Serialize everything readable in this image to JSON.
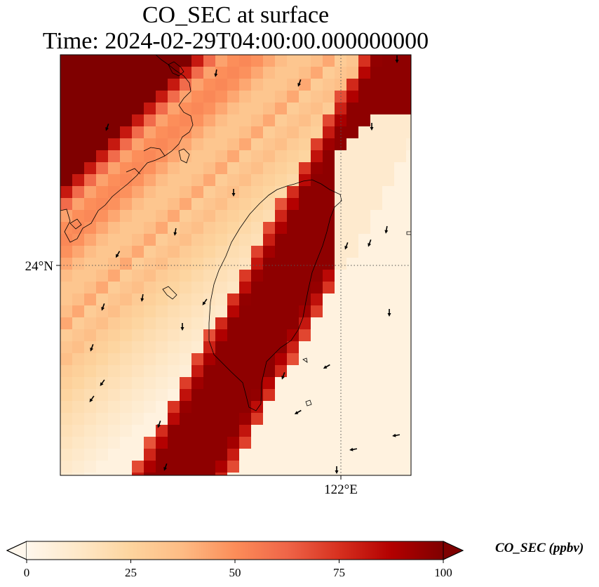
{
  "title": {
    "line1": "CO_SEC at surface",
    "line2": "Time: 2024-02-29T04:00:00.000000000"
  },
  "axes": {
    "lat_label": "24°N",
    "lon_label": "122°E"
  },
  "colorbar": {
    "label": "CO_SEC (ppbv)",
    "ticks": [
      "0",
      "25",
      "50",
      "75",
      "100"
    ],
    "min": 0,
    "max": 100,
    "colormap": [
      "#fff7ec",
      "#fee8c8",
      "#fdd49e",
      "#fdbb84",
      "#fc8d59",
      "#ef6548",
      "#d7301f",
      "#b30000",
      "#7f0000"
    ],
    "extend": "both"
  },
  "map": {
    "coastline_color": "#000000",
    "gridline_style": "dotted",
    "plume_direction": "southwest"
  }
}
